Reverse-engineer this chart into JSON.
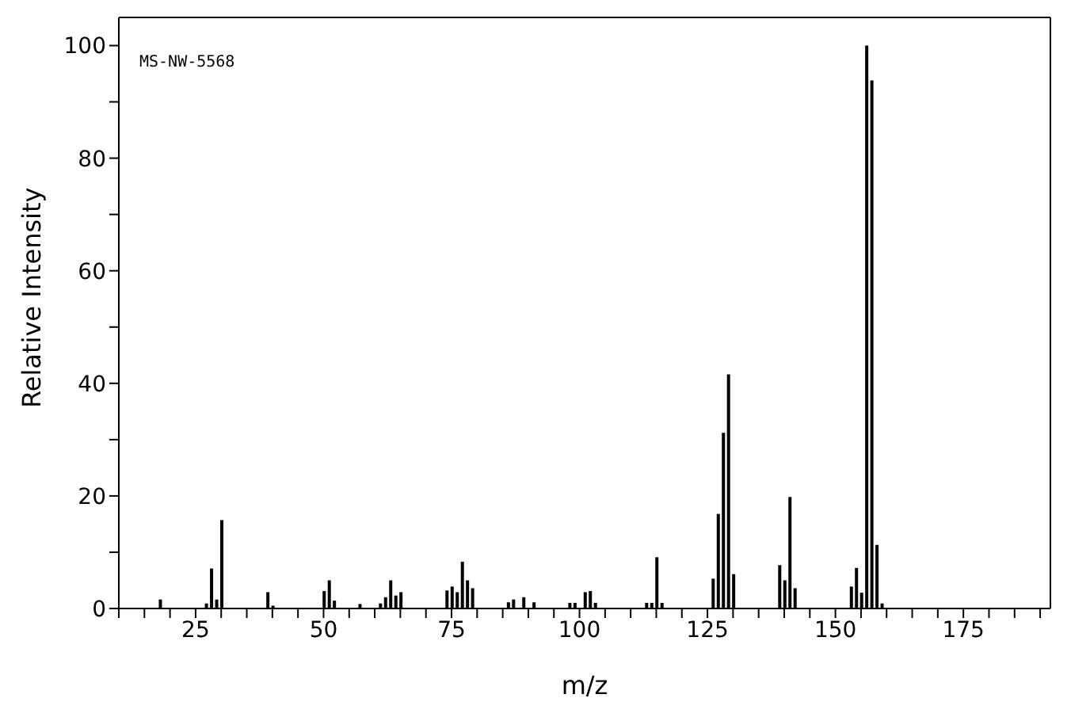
{
  "chart_data": {
    "type": "bar",
    "xlabel": "m/z",
    "ylabel": "Relative Intensity",
    "annotations": [
      "MS-NW-5568"
    ],
    "color": "#000000",
    "x": [
      18,
      27,
      28,
      29,
      30,
      39,
      40,
      50,
      51,
      52,
      57,
      61,
      62,
      63,
      64,
      65,
      74,
      75,
      76,
      77,
      78,
      79,
      86,
      87,
      89,
      91,
      98,
      99,
      101,
      102,
      103,
      113,
      114,
      115,
      116,
      126,
      127,
      128,
      129,
      130,
      139,
      140,
      141,
      142,
      153,
      154,
      155,
      156,
      157,
      158,
      159
    ],
    "values": [
      1.6,
      0.9,
      7.1,
      1.6,
      15.7,
      2.9,
      0.5,
      3.1,
      5.0,
      1.4,
      0.8,
      0.9,
      2.0,
      5.0,
      2.3,
      2.9,
      3.2,
      3.9,
      2.9,
      8.3,
      5.0,
      3.6,
      1.1,
      1.6,
      2.0,
      1.1,
      1.0,
      1.0,
      2.9,
      3.1,
      1.0,
      1.0,
      1.0,
      9.1,
      1.0,
      5.3,
      16.8,
      31.2,
      41.6,
      6.1,
      7.7,
      5.0,
      19.8,
      3.6,
      3.9,
      7.2,
      2.8,
      100,
      93.8,
      11.3,
      0.9
    ],
    "xlim": [
      10,
      192
    ],
    "ylim": [
      0,
      105
    ],
    "xticks": [
      {
        "value": 10,
        "label": null
      },
      {
        "value": 15,
        "label": null
      },
      {
        "value": 20,
        "label": null
      },
      25,
      {
        "value": 30,
        "label": null
      },
      {
        "value": 35,
        "label": null
      },
      {
        "value": 40,
        "label": null
      },
      {
        "value": 45,
        "label": null
      },
      50,
      {
        "value": 55,
        "label": null
      },
      {
        "value": 60,
        "label": null
      },
      {
        "value": 65,
        "label": null
      },
      {
        "value": 70,
        "label": null
      },
      75,
      {
        "value": 80,
        "label": null
      },
      {
        "value": 85,
        "label": null
      },
      {
        "value": 90,
        "label": null
      },
      {
        "value": 95,
        "label": null
      },
      100,
      {
        "value": 105,
        "label": null
      },
      {
        "value": 110,
        "label": null
      },
      {
        "value": 115,
        "label": null
      },
      {
        "value": 120,
        "label": null
      },
      125,
      {
        "value": 130,
        "label": null
      },
      {
        "value": 135,
        "label": null
      },
      {
        "value": 140,
        "label": null
      },
      {
        "value": 145,
        "label": null
      },
      150,
      {
        "value": 155,
        "label": null
      },
      {
        "value": 160,
        "label": null
      },
      {
        "value": 165,
        "label": null
      },
      {
        "value": 170,
        "label": null
      },
      175,
      {
        "value": 180,
        "label": null
      },
      {
        "value": 185,
        "label": null
      },
      {
        "value": 190,
        "label": null
      }
    ],
    "yticks": [
      0,
      {
        "value": 10,
        "label": null
      },
      20,
      {
        "value": 30,
        "label": null
      },
      40,
      {
        "value": 50,
        "label": null
      },
      60,
      {
        "value": 70,
        "label": null
      },
      80,
      {
        "value": 90,
        "label": null
      },
      100
    ],
    "grid": false,
    "legend": false
  }
}
